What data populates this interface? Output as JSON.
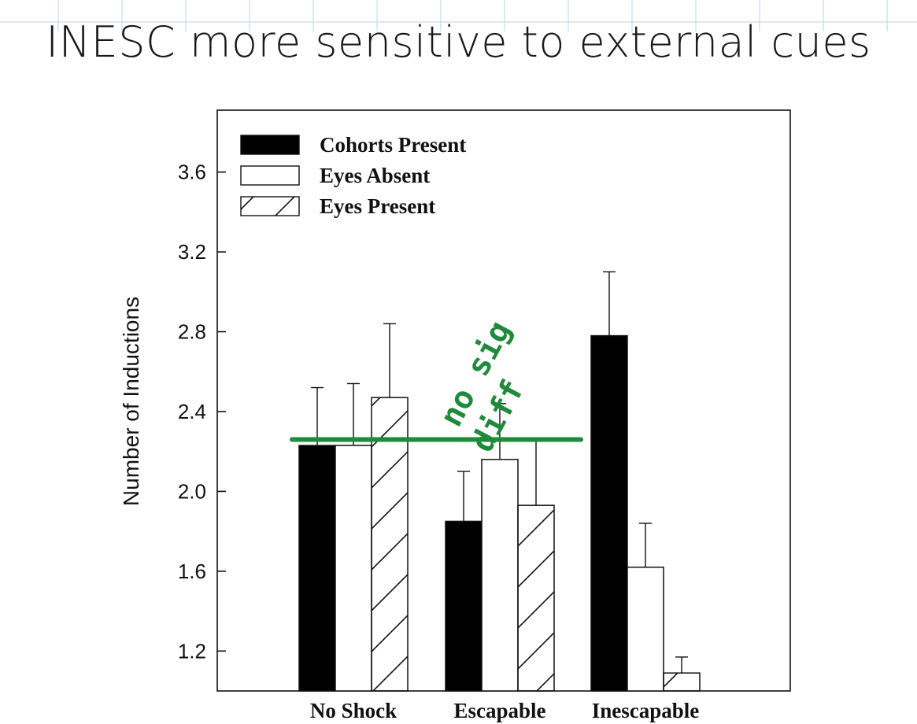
{
  "slide": {
    "title": "INESC more sensitive to external cues"
  },
  "colors": {
    "annotation": "#1f8a3a",
    "bar_stroke": "#111111",
    "grid_lines": "#bcd3ee"
  },
  "chart_data": {
    "type": "bar",
    "title": "",
    "xlabel": "",
    "ylabel": "Number of Inductions",
    "ylim": [
      1.0,
      3.85
    ],
    "yticks": [
      "1.2",
      "1.6",
      "2.0",
      "2.4",
      "2.8",
      "3.2",
      "3.6"
    ],
    "categories": [
      "No Shock",
      "Escapable",
      "Inescapable"
    ],
    "legend_position": "top-left",
    "series": [
      {
        "name": "Cohorts Present",
        "pattern": "solid",
        "values": [
          2.23,
          1.85,
          2.78
        ],
        "errors": [
          0.29,
          0.25,
          0.32
        ]
      },
      {
        "name": "Eyes Absent",
        "pattern": "open",
        "values": [
          2.23,
          2.16,
          1.62
        ],
        "errors": [
          0.31,
          0.28,
          0.22
        ]
      },
      {
        "name": "Eyes Present",
        "pattern": "hatched",
        "values": [
          2.47,
          1.93,
          1.09
        ],
        "errors": [
          0.37,
          0.33,
          0.08
        ]
      }
    ],
    "annotations": [
      {
        "type": "hline",
        "y": 2.26,
        "from_category": "No Shock",
        "to_category": "Escapable",
        "note": "green marker line"
      },
      {
        "type": "text",
        "text": "no sig diff",
        "handwritten": true
      }
    ]
  }
}
